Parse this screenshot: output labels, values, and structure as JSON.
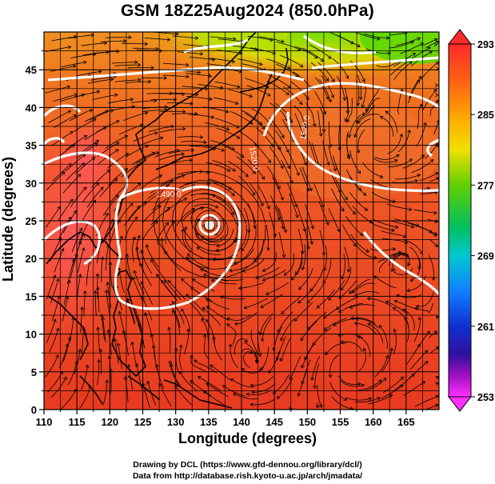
{
  "title": "GSM 18Z25Aug2024 (850.0hPa)",
  "x_axis": {
    "title": "Longitude (degrees)",
    "ticks": [
      "110",
      "115",
      "120",
      "125",
      "130",
      "135",
      "140",
      "145",
      "150",
      "155",
      "160",
      "165"
    ]
  },
  "y_axis": {
    "title": "Latitude  (degrees)",
    "ticks": [
      "0",
      "5",
      "10",
      "15",
      "20",
      "25",
      "30",
      "35",
      "40",
      "45"
    ]
  },
  "colorbar": {
    "labels": [
      "293",
      "285",
      "277",
      "269",
      "261",
      "253"
    ],
    "colors": [
      "#ff3030",
      "#ff9010",
      "#f0d000",
      "#50d000",
      "#00c8c8",
      "#1060ff",
      "#1010a0",
      "#ff00ff"
    ]
  },
  "contour_labels": [
    "1490.0",
    "1520.0",
    "1520.0"
  ],
  "credits": {
    "line1": "Drawing by DCL (https://www.gfd-dennou.org/library/dcl/)",
    "line2": "Data from http://database.rish.kyoto-u.ac.jp/arch/jmadata/"
  }
}
